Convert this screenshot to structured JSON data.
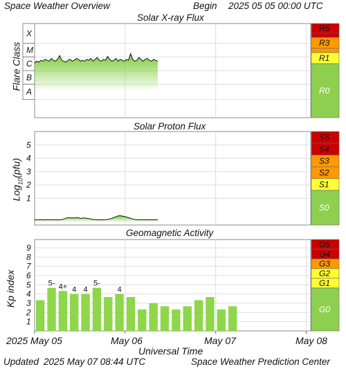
{
  "header": {
    "title": "Space Weather Overview",
    "begin_label": "Begin",
    "begin_value": "2025 05 05 00:00 UTC"
  },
  "footer": {
    "updated_label": "Updated",
    "updated_value": "2025 May 07 08:44 UTC",
    "source": "Space Weather Prediction Center"
  },
  "x_axis": {
    "title": "Universal Time",
    "ticks": [
      "2025 May 05",
      "May 06",
      "May 07",
      "May 08"
    ],
    "tick_days": [
      0,
      1,
      2,
      3
    ],
    "data_end_day": 1.36
  },
  "colors": {
    "scale_red": "#cc0000",
    "scale_orange": "#ff9900",
    "scale_yellow": "#ffff33",
    "scale_green": "#8fcf50",
    "bar_green": "#8ed64a",
    "flux_green": "#7ccc3a"
  },
  "chart_data": [
    {
      "type": "area",
      "title": "Solar X-ray Flux",
      "ylabel": "Flare Class",
      "y_class_labels": [
        "X",
        "M",
        "C",
        "B",
        "A"
      ],
      "approx_level_class": "B",
      "scale_labels": [
        "R5",
        "R3",
        "R1",
        "R0"
      ],
      "series": [
        {
          "values": [
            0.58,
            0.6,
            0.59,
            0.61,
            0.6,
            0.62,
            0.61,
            0.6,
            0.63,
            0.61,
            0.6,
            0.62,
            0.66,
            0.61,
            0.6,
            0.59,
            0.61,
            0.62,
            0.6,
            0.61,
            0.63,
            0.62,
            0.6,
            0.61,
            0.6,
            0.62,
            0.61,
            0.63,
            0.6,
            0.62,
            0.64,
            0.61,
            0.6,
            0.62,
            0.61,
            0.65,
            0.62,
            0.6,
            0.61,
            0.63,
            0.6,
            0.62,
            0.61,
            0.6,
            0.62,
            0.61,
            0.68,
            0.62,
            0.6,
            0.61,
            0.64,
            0.62,
            0.6,
            0.62,
            0.63,
            0.61,
            0.6,
            0.62,
            0.61,
            0.6
          ]
        }
      ]
    },
    {
      "type": "area",
      "title": "Solar Proton Flux",
      "ylabel": "Log10(pfu)",
      "ylabel_base": "Log",
      "ylabel_sub": "10",
      "ylabel_rest": "(pfu)",
      "y_ticks": [
        "1",
        "2",
        "3",
        "4",
        "5"
      ],
      "ylim": [
        -1,
        6
      ],
      "scale_labels": [
        "S5",
        "S4",
        "S3",
        "S2",
        "S1",
        "S0"
      ],
      "series": [
        {
          "values": [
            -0.6,
            -0.62,
            -0.61,
            -0.6,
            -0.62,
            -0.61,
            -0.6,
            -0.62,
            -0.6,
            -0.61,
            -0.6,
            -0.62,
            -0.61,
            -0.6,
            -0.55,
            -0.5,
            -0.45,
            -0.47,
            -0.46,
            -0.48,
            -0.45,
            -0.46,
            -0.5,
            -0.48,
            -0.47,
            -0.5,
            -0.52,
            -0.55,
            -0.58,
            -0.6,
            -0.61,
            -0.6,
            -0.62,
            -0.61,
            -0.6,
            -0.58,
            -0.55,
            -0.5,
            -0.44,
            -0.38,
            -0.32,
            -0.3,
            -0.33,
            -0.36,
            -0.4,
            -0.45,
            -0.5,
            -0.55,
            -0.58,
            -0.6,
            -0.61,
            -0.6,
            -0.62,
            -0.61,
            -0.6,
            -0.61,
            -0.6,
            -0.62,
            -0.61,
            -0.6
          ]
        }
      ]
    },
    {
      "type": "bar",
      "title": "Geomagnetic Activity",
      "ylabel": "Kp index",
      "y_ticks": [
        "1",
        "2",
        "3",
        "4",
        "5",
        "6",
        "7",
        "8",
        "9"
      ],
      "ylim": [
        0,
        9.9
      ],
      "scale_labels": [
        "G5",
        "G4",
        "G3",
        "G2",
        "G1",
        "G0"
      ],
      "values": [
        3.33,
        4.67,
        4.33,
        4.0,
        4.0,
        4.67,
        3.67,
        4.0,
        3.67,
        2.33,
        3.0,
        2.67,
        2.33,
        2.67,
        3.33,
        3.67,
        2.33,
        2.67
      ],
      "bar_labels": [
        "",
        "5-",
        "4+",
        "4",
        "4",
        "5-",
        "",
        "4",
        "",
        "",
        "",
        "",
        "",
        "",
        "",
        "",
        "",
        ""
      ]
    }
  ]
}
